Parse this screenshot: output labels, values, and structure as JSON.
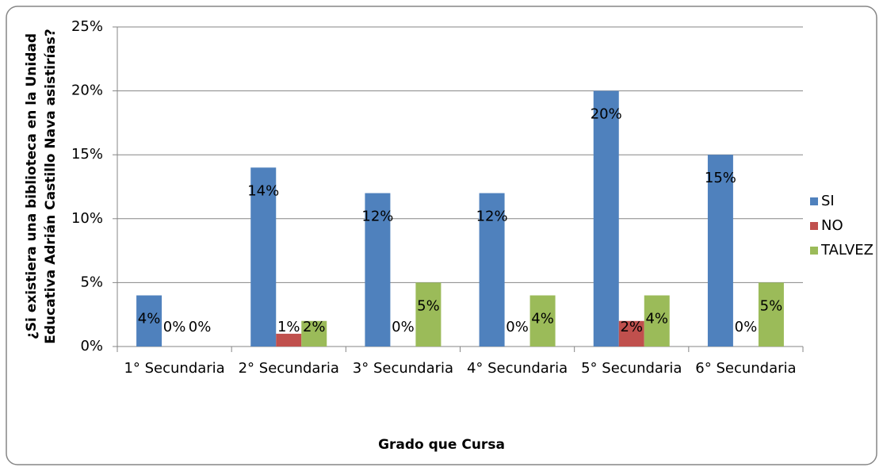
{
  "chart_data": {
    "type": "bar",
    "x_label": "Grado que Cursa",
    "y_label": "¿Si existiera una biblioteca en la Unidad Educativa Adrián Castillo Nava asistirías?",
    "categories": [
      "1° Secundaria",
      "2° Secundaria",
      "3° Secundaria",
      "4° Secundaria",
      "5° Secundaria",
      "6° Secundaria"
    ],
    "series": [
      {
        "name": "SI",
        "color": "#4f81bd",
        "values": [
          4,
          14,
          12,
          12,
          20,
          15
        ],
        "value_labels": [
          "4%",
          "14%",
          "12%",
          "12%",
          "20%",
          "15%"
        ]
      },
      {
        "name": "NO",
        "color": "#c0504d",
        "values": [
          0,
          1,
          0,
          0,
          2,
          0
        ],
        "value_labels": [
          "0%",
          "1%",
          "0%",
          "0%",
          "2%",
          "0%"
        ]
      },
      {
        "name": "TALVEZ",
        "color": "#9bbb59",
        "values": [
          0,
          2,
          5,
          4,
          4,
          5
        ],
        "value_labels": [
          "0%",
          "2%",
          "5%",
          "4%",
          "4%",
          "5%"
        ]
      }
    ],
    "ylim": [
      0,
      25
    ],
    "yticks": [
      {
        "value": 0,
        "label": "0%"
      },
      {
        "value": 5,
        "label": "5%"
      },
      {
        "value": 10,
        "label": "10%"
      },
      {
        "value": 15,
        "label": "15%"
      },
      {
        "value": 20,
        "label": "20%"
      },
      {
        "value": 25,
        "label": "25%"
      }
    ],
    "grid": true,
    "legend": "right"
  }
}
